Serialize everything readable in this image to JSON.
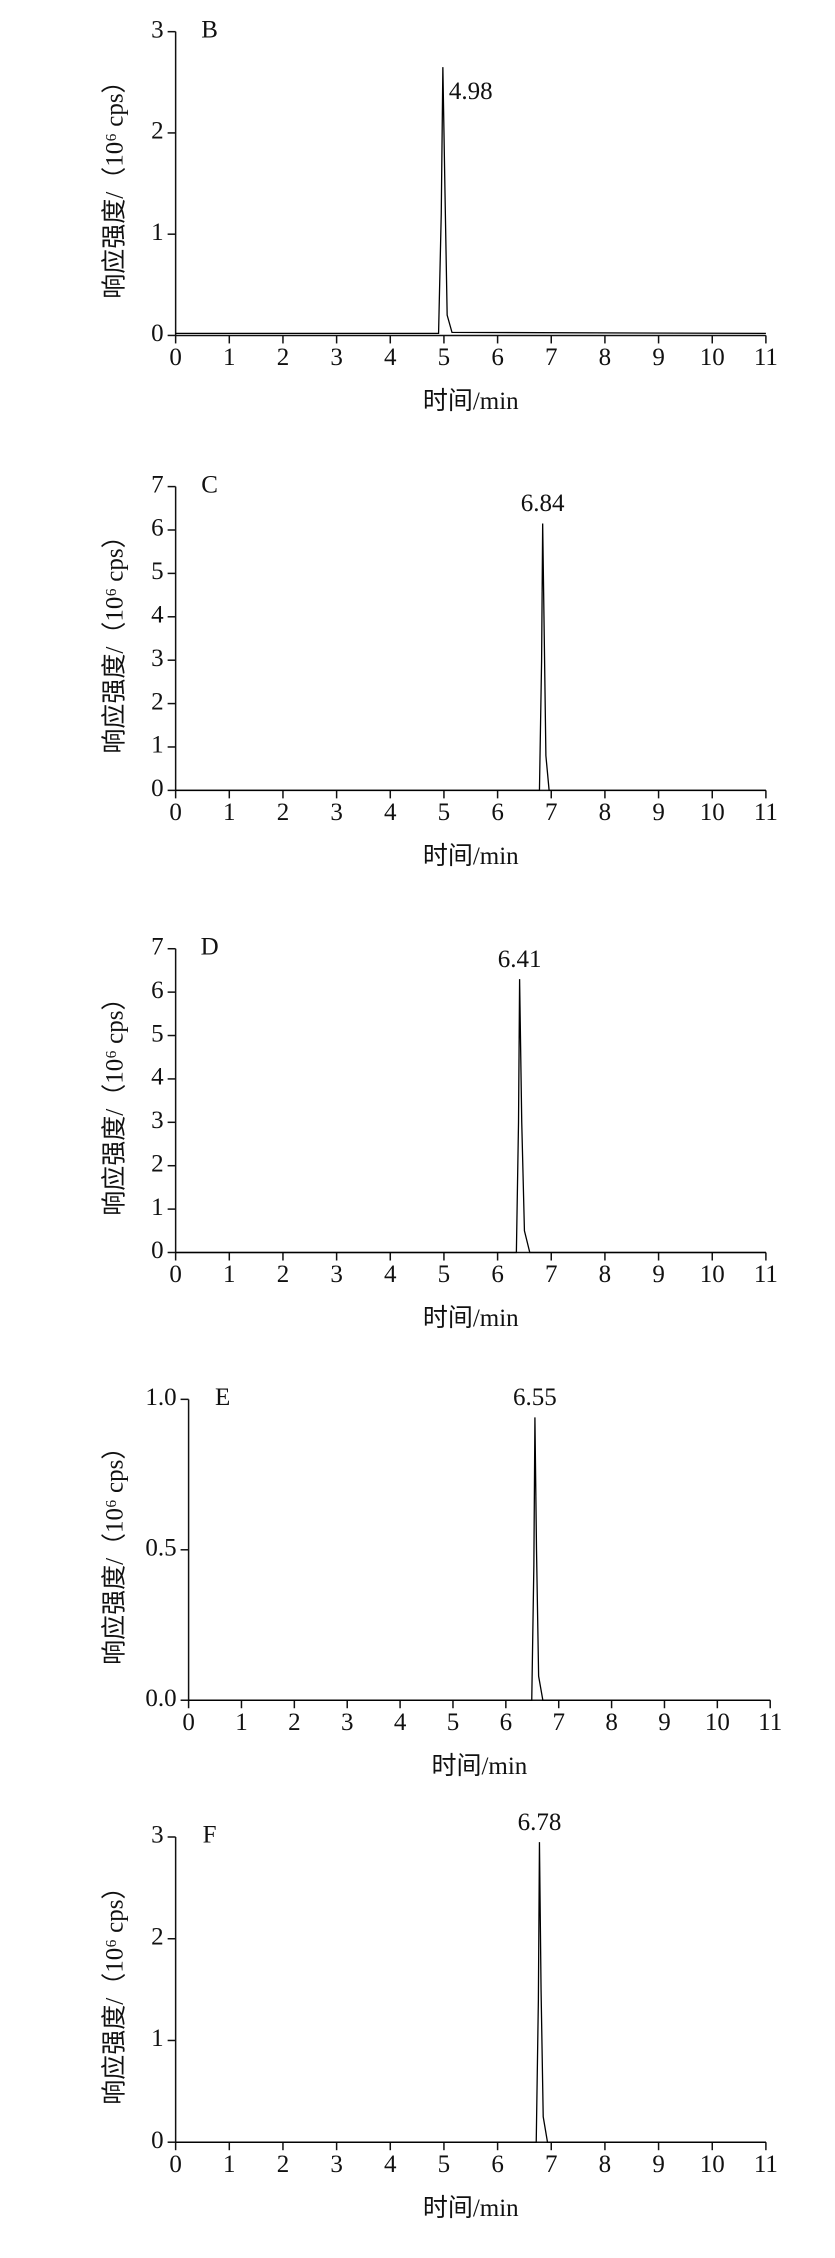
{
  "chart_data": [
    {
      "type": "line",
      "panel_label": "B",
      "peak_label": "4.98",
      "xlabel": "时间/min",
      "ylabel": "响应强度/（10⁶ cps）",
      "color": "#000000",
      "x": [
        0,
        4.9,
        4.95,
        4.98,
        5.02,
        5.06,
        5.15,
        11
      ],
      "values": [
        0.02,
        0.02,
        1.2,
        2.65,
        1.4,
        0.2,
        0.03,
        0.02
      ],
      "xlim": [
        0,
        11
      ],
      "xticks": [
        0,
        1,
        2,
        3,
        4,
        5,
        6,
        7,
        8,
        9,
        10,
        11
      ],
      "ylim": [
        0,
        3
      ],
      "yticks": [
        0,
        1,
        2,
        3
      ]
    },
    {
      "type": "line",
      "panel_label": "C",
      "peak_label": "6.84",
      "xlabel": "时间/min",
      "ylabel": "响应强度/（10⁶ cps）",
      "color": "#000000",
      "x": [
        0,
        6.78,
        6.82,
        6.84,
        6.87,
        6.9,
        6.96,
        11
      ],
      "values": [
        0,
        0,
        3,
        6.15,
        3.5,
        0.8,
        0,
        0
      ],
      "xlim": [
        0,
        11
      ],
      "xticks": [
        0,
        1,
        2,
        3,
        4,
        5,
        6,
        7,
        8,
        9,
        10,
        11
      ],
      "ylim": [
        0,
        7
      ],
      "yticks": [
        0,
        1,
        2,
        3,
        4,
        5,
        6,
        7
      ]
    },
    {
      "type": "line",
      "panel_label": "D",
      "peak_label": "6.41",
      "xlabel": "时间/min",
      "ylabel": "响应强度/（10⁶ cps）",
      "color": "#000000",
      "x": [
        0,
        6.35,
        6.39,
        6.41,
        6.45,
        6.5,
        6.6,
        11
      ],
      "values": [
        0,
        0,
        3,
        6.3,
        3,
        0.5,
        0,
        0
      ],
      "xlim": [
        0,
        11
      ],
      "xticks": [
        0,
        1,
        2,
        3,
        4,
        5,
        6,
        7,
        8,
        9,
        10,
        11
      ],
      "ylim": [
        0,
        7
      ],
      "yticks": [
        0,
        1,
        2,
        3,
        4,
        5,
        6,
        7
      ]
    },
    {
      "type": "line",
      "panel_label": "E",
      "peak_label": "6.55",
      "xlabel": "时间/min",
      "ylabel": "响应强度/（10⁶ cps）",
      "color": "#000000",
      "x": [
        0,
        6.49,
        6.53,
        6.55,
        6.58,
        6.62,
        6.7,
        11
      ],
      "values": [
        0,
        0,
        0.45,
        0.94,
        0.5,
        0.08,
        0,
        0
      ],
      "xlim": [
        0,
        11
      ],
      "xticks": [
        0,
        1,
        2,
        3,
        4,
        5,
        6,
        7,
        8,
        9,
        10,
        11
      ],
      "ylim": [
        0,
        1
      ],
      "yticks": [
        {
          "value": 0,
          "label": "0.0"
        },
        {
          "value": 0.5,
          "label": "0.5"
        },
        {
          "value": 1,
          "label": "1.0"
        }
      ]
    },
    {
      "type": "line",
      "panel_label": "F",
      "peak_label": "6.78",
      "xlabel": "时间/min",
      "ylabel": "响应强度/（10⁶ cps）",
      "color": "#000000",
      "x": [
        0,
        6.72,
        6.76,
        6.78,
        6.81,
        6.85,
        6.93,
        11
      ],
      "values": [
        0,
        0,
        1.4,
        2.95,
        1.5,
        0.25,
        0,
        0
      ],
      "xlim": [
        0,
        11
      ],
      "xticks": [
        0,
        1,
        2,
        3,
        4,
        5,
        6,
        7,
        8,
        9,
        10,
        11
      ],
      "ylim": [
        0,
        3
      ],
      "yticks": [
        0,
        1,
        2,
        3
      ]
    }
  ]
}
